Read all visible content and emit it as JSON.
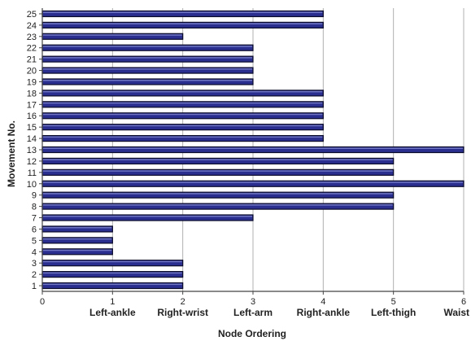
{
  "chart_data": {
    "type": "bar",
    "orientation": "horizontal",
    "ylabel": "Movement No.",
    "xlabel": "Node Ordering",
    "xlim": [
      0,
      6
    ],
    "x_ticks": [
      "0",
      "1",
      "2",
      "3",
      "4",
      "5",
      "6"
    ],
    "x_category_labels": [
      {
        "at": 1,
        "label": "Left-ankle"
      },
      {
        "at": 2,
        "label": "Right-wrist"
      },
      {
        "at": 3,
        "label": "Left-arm"
      },
      {
        "at": 4,
        "label": "Right-ankle"
      },
      {
        "at": 5,
        "label": "Left-thigh"
      },
      {
        "at": 6,
        "label": "Waist"
      }
    ],
    "categories": [
      "1",
      "2",
      "3",
      "4",
      "5",
      "6",
      "7",
      "8",
      "9",
      "10",
      "11",
      "12",
      "13",
      "14",
      "15",
      "16",
      "17",
      "18",
      "19",
      "20",
      "21",
      "22",
      "23",
      "24",
      "25"
    ],
    "values": [
      2,
      2,
      2,
      1,
      1,
      1,
      3,
      5,
      5,
      6,
      5,
      5,
      6,
      4,
      4,
      4,
      4,
      4,
      3,
      3,
      3,
      3,
      2,
      4,
      4
    ],
    "grid": "vertical",
    "legend": "none",
    "colors": {
      "bar": "#2a2f8f",
      "bar_edge": "#0a0a2a",
      "grid": "#b0b0b0",
      "axis": "#444444"
    }
  }
}
